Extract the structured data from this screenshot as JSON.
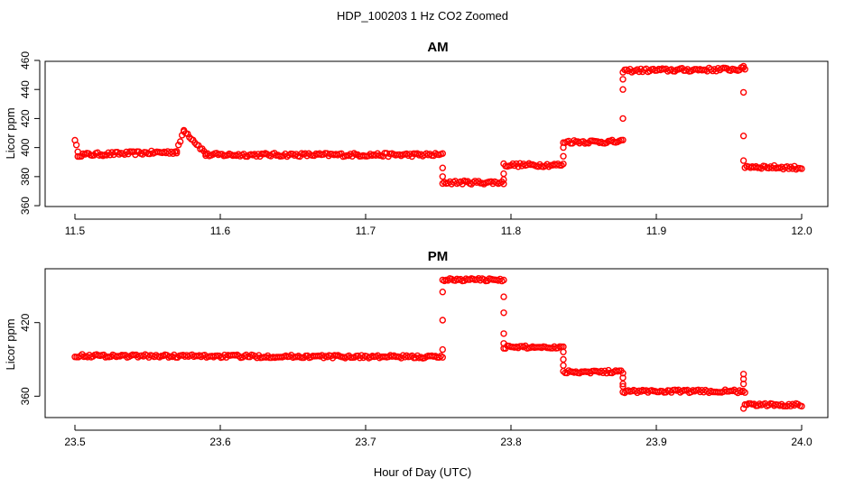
{
  "figure": {
    "title": "HDP_100203  1 Hz CO2 Zoomed",
    "xlabel": "Hour of Day (UTC)"
  },
  "chart_data": [
    {
      "type": "scatter",
      "title": "AM",
      "ylabel": "Licor ppm",
      "xlim": [
        11.5,
        12.0
      ],
      "ylim": [
        365,
        460
      ],
      "xticks": [
        "11.5",
        "11.6",
        "11.7",
        "11.8",
        "11.9",
        "12.0"
      ],
      "yticks": [
        "360",
        "380",
        "400",
        "420",
        "440",
        "460"
      ],
      "marker_color": "#ff0000",
      "segments": [
        {
          "x0": 11.5,
          "x1": 11.502,
          "y0": 406,
          "y1": 396
        },
        {
          "x0": 11.502,
          "x1": 11.57,
          "y0": 395,
          "y1": 397
        },
        {
          "x0": 11.57,
          "x1": 11.575,
          "y0": 397,
          "y1": 412
        },
        {
          "x0": 11.575,
          "x1": 11.59,
          "y0": 412,
          "y1": 396
        },
        {
          "x0": 11.59,
          "x1": 11.753,
          "y0": 395,
          "y1": 395
        },
        {
          "x0": 11.753,
          "x1": 11.795,
          "y0": 376,
          "y1": 376
        },
        {
          "x0": 11.795,
          "x1": 11.836,
          "y0": 388,
          "y1": 388
        },
        {
          "x0": 11.836,
          "x1": 11.877,
          "y0": 404,
          "y1": 404
        },
        {
          "x0": 11.877,
          "x1": 11.961,
          "y0": 453,
          "y1": 454
        },
        {
          "x0": 11.961,
          "x1": 12.0,
          "y0": 387,
          "y1": 386
        }
      ],
      "transitions": [
        {
          "x": 11.753,
          "values": [
            386,
            380
          ]
        },
        {
          "x": 11.795,
          "values": [
            378,
            382
          ]
        },
        {
          "x": 11.836,
          "values": [
            394,
            400
          ]
        },
        {
          "x": 11.877,
          "values": [
            420,
            440,
            447
          ]
        },
        {
          "x": 11.96,
          "values": [
            456,
            438,
            408,
            391
          ]
        }
      ]
    },
    {
      "type": "scatter",
      "title": "PM",
      "ylabel": "Licor ppm",
      "xlim": [
        23.5,
        24.0
      ],
      "ylim": [
        347,
        458
      ],
      "xticks": [
        "23.5",
        "23.6",
        "23.7",
        "23.8",
        "23.9",
        "24.0"
      ],
      "yticks": [
        "360",
        "420"
      ],
      "marker_color": "#ff0000",
      "segments": [
        {
          "x0": 23.5,
          "x1": 23.753,
          "y0": 393,
          "y1": 392
        },
        {
          "x0": 23.753,
          "x1": 23.795,
          "y0": 455,
          "y1": 455
        },
        {
          "x0": 23.795,
          "x1": 23.836,
          "y0": 400,
          "y1": 400
        },
        {
          "x0": 23.836,
          "x1": 23.877,
          "y0": 380,
          "y1": 380
        },
        {
          "x0": 23.877,
          "x1": 23.961,
          "y0": 364,
          "y1": 364
        },
        {
          "x0": 23.961,
          "x1": 24.0,
          "y0": 353,
          "y1": 353
        }
      ],
      "transitions": [
        {
          "x": 23.753,
          "values": [
            398,
            422,
            445
          ]
        },
        {
          "x": 23.795,
          "values": [
            441,
            428,
            411,
            403
          ]
        },
        {
          "x": 23.836,
          "values": [
            396,
            390,
            385
          ]
        },
        {
          "x": 23.877,
          "values": [
            375,
            370,
            368
          ]
        },
        {
          "x": 23.96,
          "values": [
            378,
            374,
            370,
            350
          ]
        }
      ]
    }
  ]
}
